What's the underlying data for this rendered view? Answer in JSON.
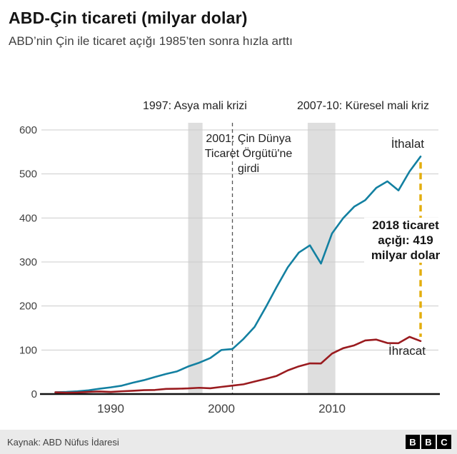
{
  "header": {
    "title": "ABD-Çin ticareti (milyar dolar)",
    "subtitle": "ABD’nin Çin ile ticaret açığı 1985’ten sonra hızla arttı"
  },
  "annotations": {
    "asia_crisis": "1997: Asya mali krizi",
    "global_crisis": "2007-10: Küresel mali kriz",
    "wto": "2001: Çin Dünya Ticaret Örgütü'ne girdi",
    "deficit": "2018 ticaret açığı: 419 milyar dolar",
    "imports_label": "İthalat",
    "exports_label": "İhracat"
  },
  "footer": {
    "source": "Kaynak: ABD Nüfus İdaresi",
    "logo_letters": [
      "B",
      "B",
      "C"
    ]
  },
  "chart_data": {
    "type": "line",
    "title": "ABD-Çin ticareti (milyar dolar)",
    "xlabel": "",
    "ylabel": "milyar dolar",
    "ylim": [
      0,
      600
    ],
    "yticks": [
      0,
      100,
      200,
      300,
      400,
      500,
      600
    ],
    "xticks": [
      1990,
      2000,
      2010
    ],
    "grid": "horizontal",
    "x": [
      1985,
      1986,
      1987,
      1988,
      1989,
      1990,
      1991,
      1992,
      1993,
      1994,
      1995,
      1996,
      1997,
      1998,
      1999,
      2000,
      2001,
      2002,
      2003,
      2004,
      2005,
      2006,
      2007,
      2008,
      2009,
      2010,
      2011,
      2012,
      2013,
      2014,
      2015,
      2016,
      2017,
      2018
    ],
    "series": [
      {
        "name": "İthalat",
        "color": "#1380A1",
        "values": [
          3.9,
          4.8,
          6.3,
          8.5,
          12,
          15.2,
          19,
          25.7,
          31.5,
          38.8,
          45.6,
          51.5,
          62.6,
          71.2,
          81.8,
          100,
          102.3,
          125.2,
          152.4,
          196.7,
          243.5,
          287.8,
          321.4,
          337.8,
          296.4,
          364.9,
          399.4,
          425.6,
          440.4,
          468.5,
          483.2,
          462.5,
          505.5,
          539.5
        ]
      },
      {
        "name": "İhracat",
        "color": "#9A1B1F",
        "values": [
          3.9,
          3.1,
          3.5,
          5,
          5.8,
          4.8,
          6.3,
          7.4,
          8.8,
          9.3,
          11.7,
          12,
          12.8,
          14.2,
          13.1,
          16.2,
          19.2,
          22.1,
          28.4,
          34.4,
          41.2,
          53.7,
          62.9,
          69.7,
          69.5,
          91.9,
          104.1,
          110.5,
          121.7,
          123.7,
          115.9,
          115.5,
          129.9,
          120.3
        ]
      }
    ],
    "bands": [
      {
        "from": 1997,
        "to": 1998.3,
        "meaning": "Asya mali krizi"
      },
      {
        "from": 2007.8,
        "to": 2010.3,
        "meaning": "Küresel mali kriz"
      }
    ],
    "vline": {
      "year": 2001,
      "meaning": "Çin Dünya Ticaret Örgütü'ne girdi"
    },
    "deficit_marker": {
      "year": 2018,
      "top_value": 539.5,
      "bottom_value": 120.3,
      "deficit": 419,
      "color": "#E3AE0E"
    },
    "colors": {
      "grid": "#cccccc",
      "axis": "#111111",
      "band": "#dedede",
      "vline": "#555555"
    }
  }
}
